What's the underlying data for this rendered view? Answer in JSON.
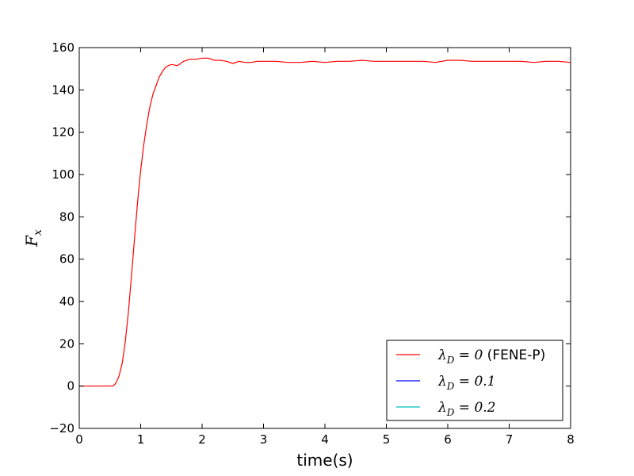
{
  "chart_data": {
    "type": "line",
    "xlabel": "time(s)",
    "ylabel": "F_x",
    "xlim": [
      0,
      8
    ],
    "ylim": [
      -20,
      160
    ],
    "x_ticks": [
      0,
      1,
      2,
      3,
      4,
      5,
      6,
      7,
      8
    ],
    "y_ticks": [
      -20,
      0,
      20,
      40,
      60,
      80,
      100,
      120,
      140,
      160
    ],
    "grid": false,
    "legend_position": "bottom-right",
    "series": [
      {
        "name": "λ_D = 0 (FENE-P)",
        "color": "#ff0000",
        "x": [
          0,
          0.1,
          0.2,
          0.3,
          0.4,
          0.5,
          0.55,
          0.6,
          0.65,
          0.7,
          0.75,
          0.8,
          0.85,
          0.9,
          0.95,
          1.0,
          1.05,
          1.1,
          1.15,
          1.2,
          1.25,
          1.3,
          1.35,
          1.4,
          1.45,
          1.5,
          1.6,
          1.7,
          1.8,
          1.9,
          2.0,
          2.1,
          2.2,
          2.3,
          2.4,
          2.5,
          2.6,
          2.7,
          2.8,
          2.9,
          3.0,
          3.2,
          3.4,
          3.6,
          3.8,
          4.0,
          4.2,
          4.4,
          4.6,
          4.8,
          5.0,
          5.2,
          5.4,
          5.6,
          5.8,
          6.0,
          6.2,
          6.4,
          6.6,
          6.8,
          7.0,
          7.2,
          7.4,
          7.6,
          7.8,
          8.0
        ],
        "y": [
          0,
          0,
          0,
          0,
          0,
          0,
          0,
          1.5,
          5,
          11,
          21,
          35,
          52,
          70,
          87,
          102,
          114,
          124,
          132,
          138,
          142,
          146,
          148.5,
          150.5,
          151.5,
          152,
          151.5,
          153.5,
          154.5,
          154.5,
          155,
          155,
          154,
          154,
          153.5,
          152.5,
          153.5,
          153,
          153,
          153.5,
          153.5,
          153.5,
          153,
          153,
          153.5,
          153,
          153.5,
          153.5,
          154,
          153.5,
          153.5,
          153.5,
          153.5,
          153.5,
          153,
          154,
          154,
          153.5,
          153.5,
          153.5,
          153.5,
          153.5,
          153,
          153.5,
          153.5,
          153
        ]
      },
      {
        "name": "λ_D = 0.1",
        "color": "#0000ff",
        "x": [],
        "y": []
      },
      {
        "name": "λ_D = 0.2",
        "color": "#00bfbf",
        "x": [],
        "y": []
      }
    ]
  },
  "legend": {
    "items": [
      {
        "sym": "λ",
        "sub": "D",
        "rest": " = 0",
        "suffix": " (FENE-P)"
      },
      {
        "sym": "λ",
        "sub": "D",
        "rest": " = 0.1",
        "suffix": ""
      },
      {
        "sym": "λ",
        "sub": "D",
        "rest": " = 0.2",
        "suffix": ""
      }
    ]
  },
  "ylabel_parts": {
    "main": "F",
    "sub": "x"
  }
}
